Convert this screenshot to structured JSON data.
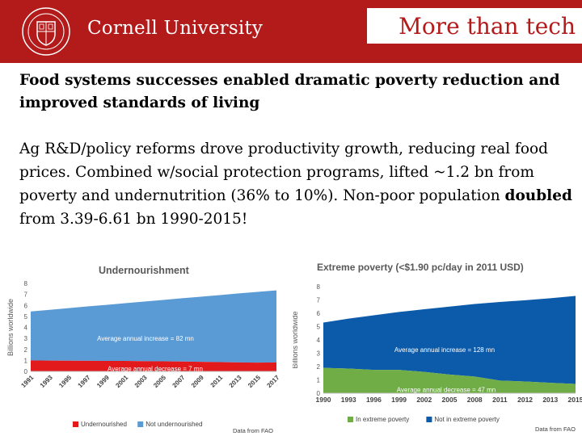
{
  "header": {
    "university": "Cornell University",
    "slide_title": "More than tech",
    "brand_color": "#b31b1b"
  },
  "subtitle": "Food systems successes enabled dramatic poverty reduction and improved standards of living",
  "body": {
    "part1": "Ag R&D/policy reforms drove productivity growth, reducing real food prices. Combined w/social protection programs, lifted ~1.2 bn from poverty and undernutrition (36% to 10%). Non-poor population ",
    "bold": "doubled",
    "part2": " from 3.39-6.61 bn 1990-2015!"
  },
  "chart_data": [
    {
      "type": "area",
      "title": "Undernourishment",
      "ylabel": "Billions worldwide",
      "ylim": [
        0,
        8
      ],
      "yticks": [
        "0",
        "1",
        "2",
        "3",
        "4",
        "5",
        "6",
        "7",
        "8"
      ],
      "x_tick_labels": [
        "1991",
        "1993",
        "1995",
        "1997",
        "1999",
        "2001",
        "2003",
        "2005",
        "2007",
        "2009",
        "2011",
        "2013",
        "2015",
        "2017"
      ],
      "x": [
        1991,
        1993,
        1995,
        1997,
        1999,
        2001,
        2003,
        2005,
        2007,
        2009,
        2011,
        2013,
        2015,
        2017
      ],
      "series": [
        {
          "name": "Undernourished",
          "color": "#e31a1c",
          "values": [
            1.0,
            0.98,
            0.97,
            0.96,
            0.95,
            0.95,
            0.93,
            0.92,
            0.9,
            0.87,
            0.84,
            0.82,
            0.8,
            0.82
          ]
        },
        {
          "name": "Not undernourished",
          "color": "#5b9bd5",
          "values": [
            4.45,
            4.62,
            4.78,
            4.95,
            5.1,
            5.25,
            5.42,
            5.58,
            5.75,
            5.92,
            6.1,
            6.27,
            6.43,
            6.55
          ]
        }
      ],
      "annotations": [
        "Average annual increase = 82 mn",
        "Average annual decrease = 7 mn"
      ],
      "source": "Data from FAO"
    },
    {
      "type": "area",
      "title": "Extreme poverty (<$1.90 pc/day in 2011 USD)",
      "ylabel": "Billions worldwide",
      "ylim": [
        0,
        8
      ],
      "yticks": [
        "0",
        "1",
        "2",
        "3",
        "4",
        "5",
        "6",
        "7",
        "8"
      ],
      "x_tick_labels": [
        "1990",
        "1993",
        "1996",
        "1999",
        "2002",
        "2005",
        "2008",
        "2011",
        "2012",
        "2013",
        "2015"
      ],
      "x": [
        1990,
        1993,
        1996,
        1999,
        2002,
        2005,
        2008,
        2011,
        2012,
        2013,
        2015
      ],
      "series": [
        {
          "name": "In extreme poverty",
          "color": "#70ad47",
          "values": [
            1.9,
            1.85,
            1.75,
            1.75,
            1.6,
            1.4,
            1.25,
            0.95,
            0.88,
            0.78,
            0.7
          ]
        },
        {
          "name": "Not in extreme poverty",
          "color": "#0c5bab",
          "values": [
            3.4,
            3.75,
            4.1,
            4.35,
            4.7,
            5.1,
            5.45,
            5.9,
            6.1,
            6.35,
            6.6
          ]
        }
      ],
      "annotations": [
        "Average annual increase = 128 mn",
        "Average annual decrease = 47 mn"
      ],
      "source": "Data from FAO"
    }
  ]
}
